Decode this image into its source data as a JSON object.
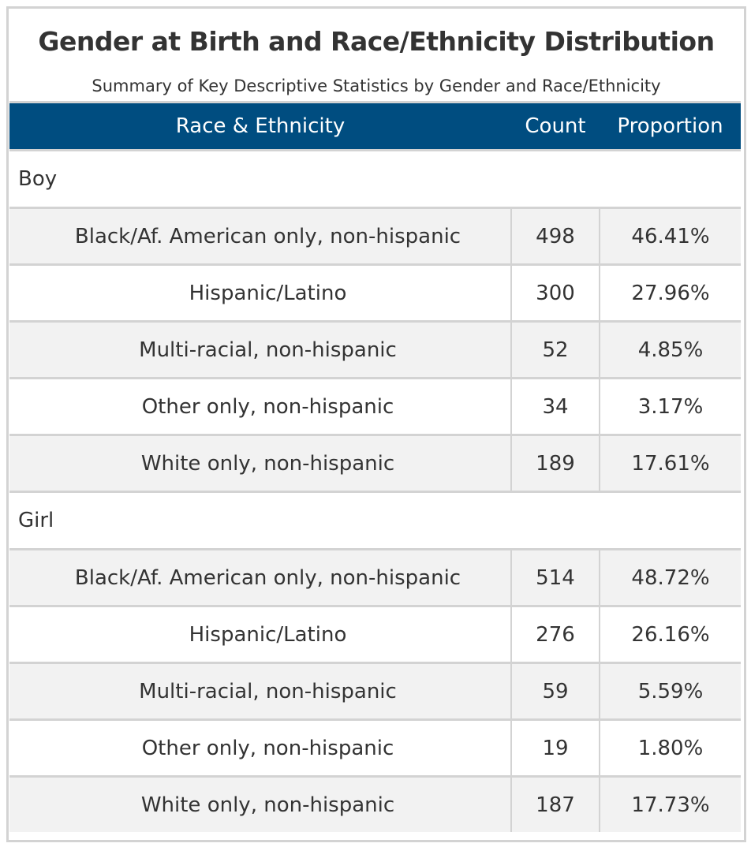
{
  "title": "Gender at Birth and Race/Ethnicity Distribution",
  "subtitle": "Summary of Key Descriptive Statistics by Gender and Race/Ethnicity",
  "columns": {
    "race": "Race & Ethnicity",
    "count": "Count",
    "proportion": "Proportion"
  },
  "groups": [
    {
      "label": "Boy",
      "rows": [
        {
          "race": "Black/Af. American only, non-hispanic",
          "count": "498",
          "proportion": "46.41%"
        },
        {
          "race": "Hispanic/Latino",
          "count": "300",
          "proportion": "27.96%"
        },
        {
          "race": "Multi-racial, non-hispanic",
          "count": "52",
          "proportion": "4.85%"
        },
        {
          "race": "Other only, non-hispanic",
          "count": "34",
          "proportion": "3.17%"
        },
        {
          "race": "White only, non-hispanic",
          "count": "189",
          "proportion": "17.61%"
        }
      ]
    },
    {
      "label": "Girl",
      "rows": [
        {
          "race": "Black/Af. American only, non-hispanic",
          "count": "514",
          "proportion": "48.72%"
        },
        {
          "race": "Hispanic/Latino",
          "count": "276",
          "proportion": "26.16%"
        },
        {
          "race": "Multi-racial, non-hispanic",
          "count": "59",
          "proportion": "5.59%"
        },
        {
          "race": "Other only, non-hispanic",
          "count": "19",
          "proportion": "1.80%"
        },
        {
          "race": "White only, non-hispanic",
          "count": "187",
          "proportion": "17.73%"
        }
      ]
    }
  ],
  "colors": {
    "header_bg": "#004d80",
    "header_text": "#ffffff",
    "stripe": "#f2f2f2",
    "border": "#d3d3d3",
    "text": "#333333"
  }
}
